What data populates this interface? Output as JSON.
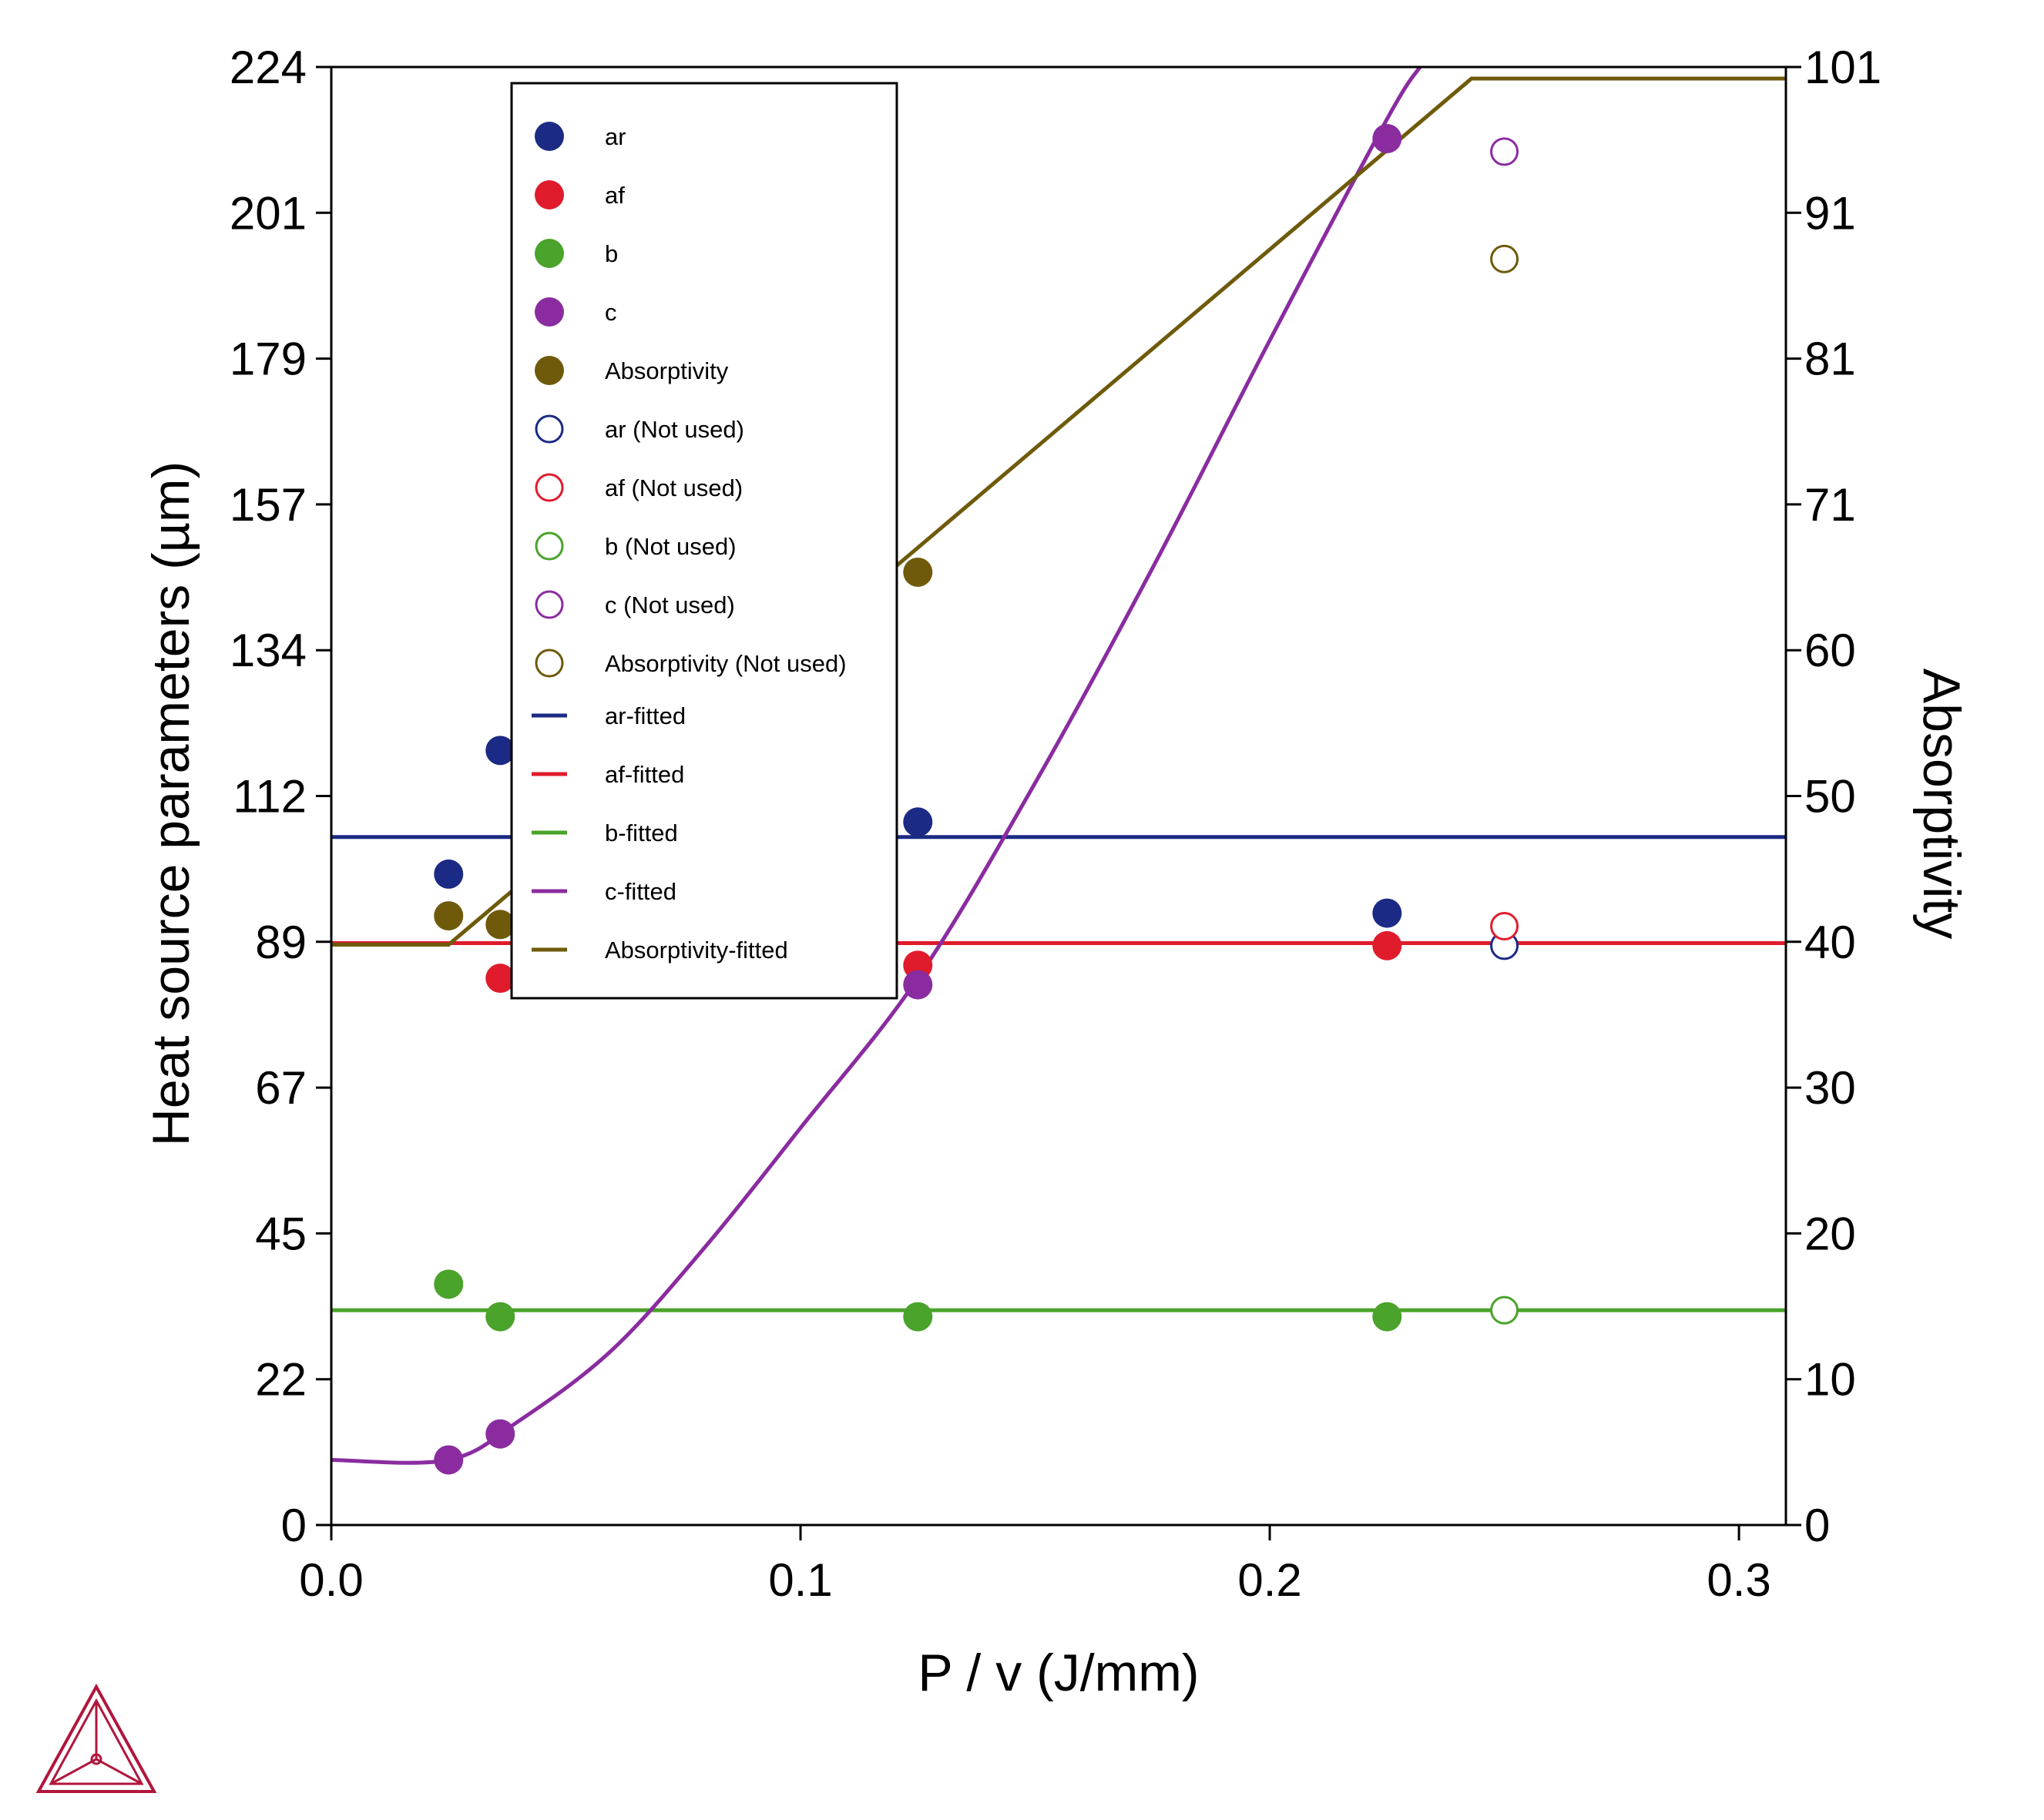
{
  "chart_data": {
    "type": "scatter",
    "xlabel": "P / v (J/mm)",
    "ylabel": "Heat source parameters (µm)",
    "y2label": "Absorptivity",
    "xlim": [
      0.0,
      0.31
    ],
    "ylim": [
      0,
      224
    ],
    "y2lim": [
      0,
      101
    ],
    "x_ticks": [
      "0.0",
      "0.1",
      "0.2",
      "0.3"
    ],
    "x_tick_values": [
      0.0,
      0.1,
      0.2,
      0.3
    ],
    "y_ticks": [
      "0",
      "22",
      "45",
      "67",
      "89",
      "112",
      "134",
      "157",
      "179",
      "201",
      "224"
    ],
    "y2_ticks": [
      "0",
      "10",
      "20",
      "30",
      "40",
      "50",
      "60",
      "71",
      "81",
      "91",
      "101"
    ],
    "grid": false,
    "legend_position": "top-left inside",
    "series": [
      {
        "name": "ar",
        "kind": "point",
        "filled": true,
        "axis": "left",
        "color": "#1b2a84",
        "x": [
          0.025,
          0.036,
          0.125,
          0.225
        ],
        "y": [
          100,
          119,
          108,
          94
        ]
      },
      {
        "name": "af",
        "kind": "point",
        "filled": true,
        "axis": "left",
        "color": "#e01c2c",
        "x": [
          0.036,
          0.125,
          0.225
        ],
        "y": [
          84,
          86,
          89
        ]
      },
      {
        "name": "b",
        "kind": "point",
        "filled": true,
        "axis": "left",
        "color": "#4aa32a",
        "x": [
          0.025,
          0.036,
          0.125,
          0.225
        ],
        "y": [
          37,
          32,
          32,
          32
        ]
      },
      {
        "name": "c",
        "kind": "point",
        "filled": true,
        "axis": "left",
        "color": "#8a2ca0",
        "x": [
          0.025,
          0.036,
          0.125,
          0.225
        ],
        "y": [
          10,
          14,
          83,
          213
        ]
      },
      {
        "name": "Absorptivity",
        "kind": "point",
        "filled": true,
        "axis": "right",
        "color": "#6e5a0a",
        "x": [
          0.025,
          0.036,
          0.125
        ],
        "y": [
          42.2,
          41.6,
          66
        ]
      },
      {
        "name": "ar (Not used)",
        "kind": "point",
        "filled": false,
        "axis": "left",
        "color": "#1b2a84",
        "x": [
          0.25
        ],
        "y": [
          89
        ]
      },
      {
        "name": "af (Not used)",
        "kind": "point",
        "filled": false,
        "axis": "left",
        "color": "#e01c2c",
        "x": [
          0.25
        ],
        "y": [
          92
        ]
      },
      {
        "name": "b (Not used)",
        "kind": "point",
        "filled": false,
        "axis": "left",
        "color": "#4aa32a",
        "x": [
          0.25
        ],
        "y": [
          33
        ]
      },
      {
        "name": "c (Not used)",
        "kind": "point",
        "filled": false,
        "axis": "left",
        "color": "#8a2ca0",
        "x": [
          0.25
        ],
        "y": [
          211
        ]
      },
      {
        "name": "Absorptivity (Not used)",
        "kind": "point",
        "filled": false,
        "axis": "right",
        "color": "#6e5a0a",
        "x": [
          0.25
        ],
        "y": [
          87.7
        ]
      },
      {
        "name": "ar-fitted",
        "kind": "line",
        "axis": "left",
        "color": "#1b2a84",
        "x": [
          0,
          0.31
        ],
        "y": [
          105.7,
          105.7
        ]
      },
      {
        "name": "af-fitted",
        "kind": "line",
        "axis": "left",
        "color": "#e01c2c",
        "x": [
          0,
          0.31
        ],
        "y": [
          89.4,
          89.4
        ]
      },
      {
        "name": "b-fitted",
        "kind": "line",
        "axis": "left",
        "color": "#4aa32a",
        "x": [
          0,
          0.31
        ],
        "y": [
          33,
          33
        ]
      },
      {
        "name": "c-fitted",
        "kind": "line",
        "axis": "left",
        "color": "#8a2ca0",
        "x": [
          0,
          0.025,
          0.04,
          0.06,
          0.08,
          0.1,
          0.125,
          0.15,
          0.175,
          0.2,
          0.225,
          0.232
        ],
        "y": [
          10,
          10,
          16,
          27,
          43,
          61,
          84,
          114,
          147,
          182,
          216,
          224
        ]
      },
      {
        "name": "Absorptivity-fitted",
        "kind": "line",
        "axis": "right",
        "color": "#6e5a0a",
        "x": [
          0,
          0.025,
          0.125,
          0.243,
          0.31
        ],
        "y": [
          40.2,
          40.2,
          67.7,
          100.2,
          100.2
        ]
      }
    ]
  }
}
